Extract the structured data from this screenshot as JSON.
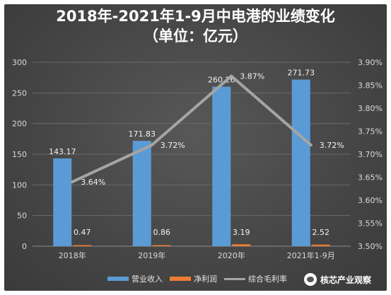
{
  "chart_data": {
    "type": "bar",
    "title": "2018年-2021年1-9月中电港的业绩变化",
    "subtitle": "（单位：亿元）",
    "categories": [
      "2018年",
      "2019年",
      "2020年",
      "2021年1-9月"
    ],
    "series": [
      {
        "name": "营业收入",
        "type": "bar",
        "axis": "left",
        "color": "#5b9bd5",
        "values": [
          143.17,
          171.83,
          260.26,
          271.73
        ],
        "labels": [
          "143.17",
          "171.83",
          "260.26",
          "271.73"
        ]
      },
      {
        "name": "净利润",
        "type": "bar",
        "axis": "left",
        "color": "#ed7d31",
        "values": [
          0.47,
          0.86,
          3.19,
          2.52
        ],
        "labels": [
          "0.47",
          "0.86",
          "3.19",
          "2.52"
        ]
      },
      {
        "name": "综合毛利率",
        "type": "line",
        "axis": "right",
        "color": "#a5a5a5",
        "values": [
          3.64,
          3.72,
          3.87,
          3.72
        ],
        "labels": [
          "3.64%",
          "3.72%",
          "3.87%",
          "3.72%"
        ]
      }
    ],
    "ylim": [
      0,
      300
    ],
    "yticks": [
      "0",
      "50",
      "100",
      "150",
      "200",
      "250",
      "300"
    ],
    "y2lim": [
      3.5,
      3.9
    ],
    "y2ticks": [
      "3.50%",
      "3.55%",
      "3.60%",
      "3.65%",
      "3.70%",
      "3.75%",
      "3.80%",
      "3.85%",
      "3.90%"
    ],
    "grid": true,
    "legend": "bottom"
  },
  "watermark": {
    "text": "核芯产业观察"
  },
  "colors": {
    "background": "#454545",
    "bar_revenue": "#5b9bd5",
    "bar_profit": "#ed7d31",
    "line_margin": "#a5a5a5"
  }
}
